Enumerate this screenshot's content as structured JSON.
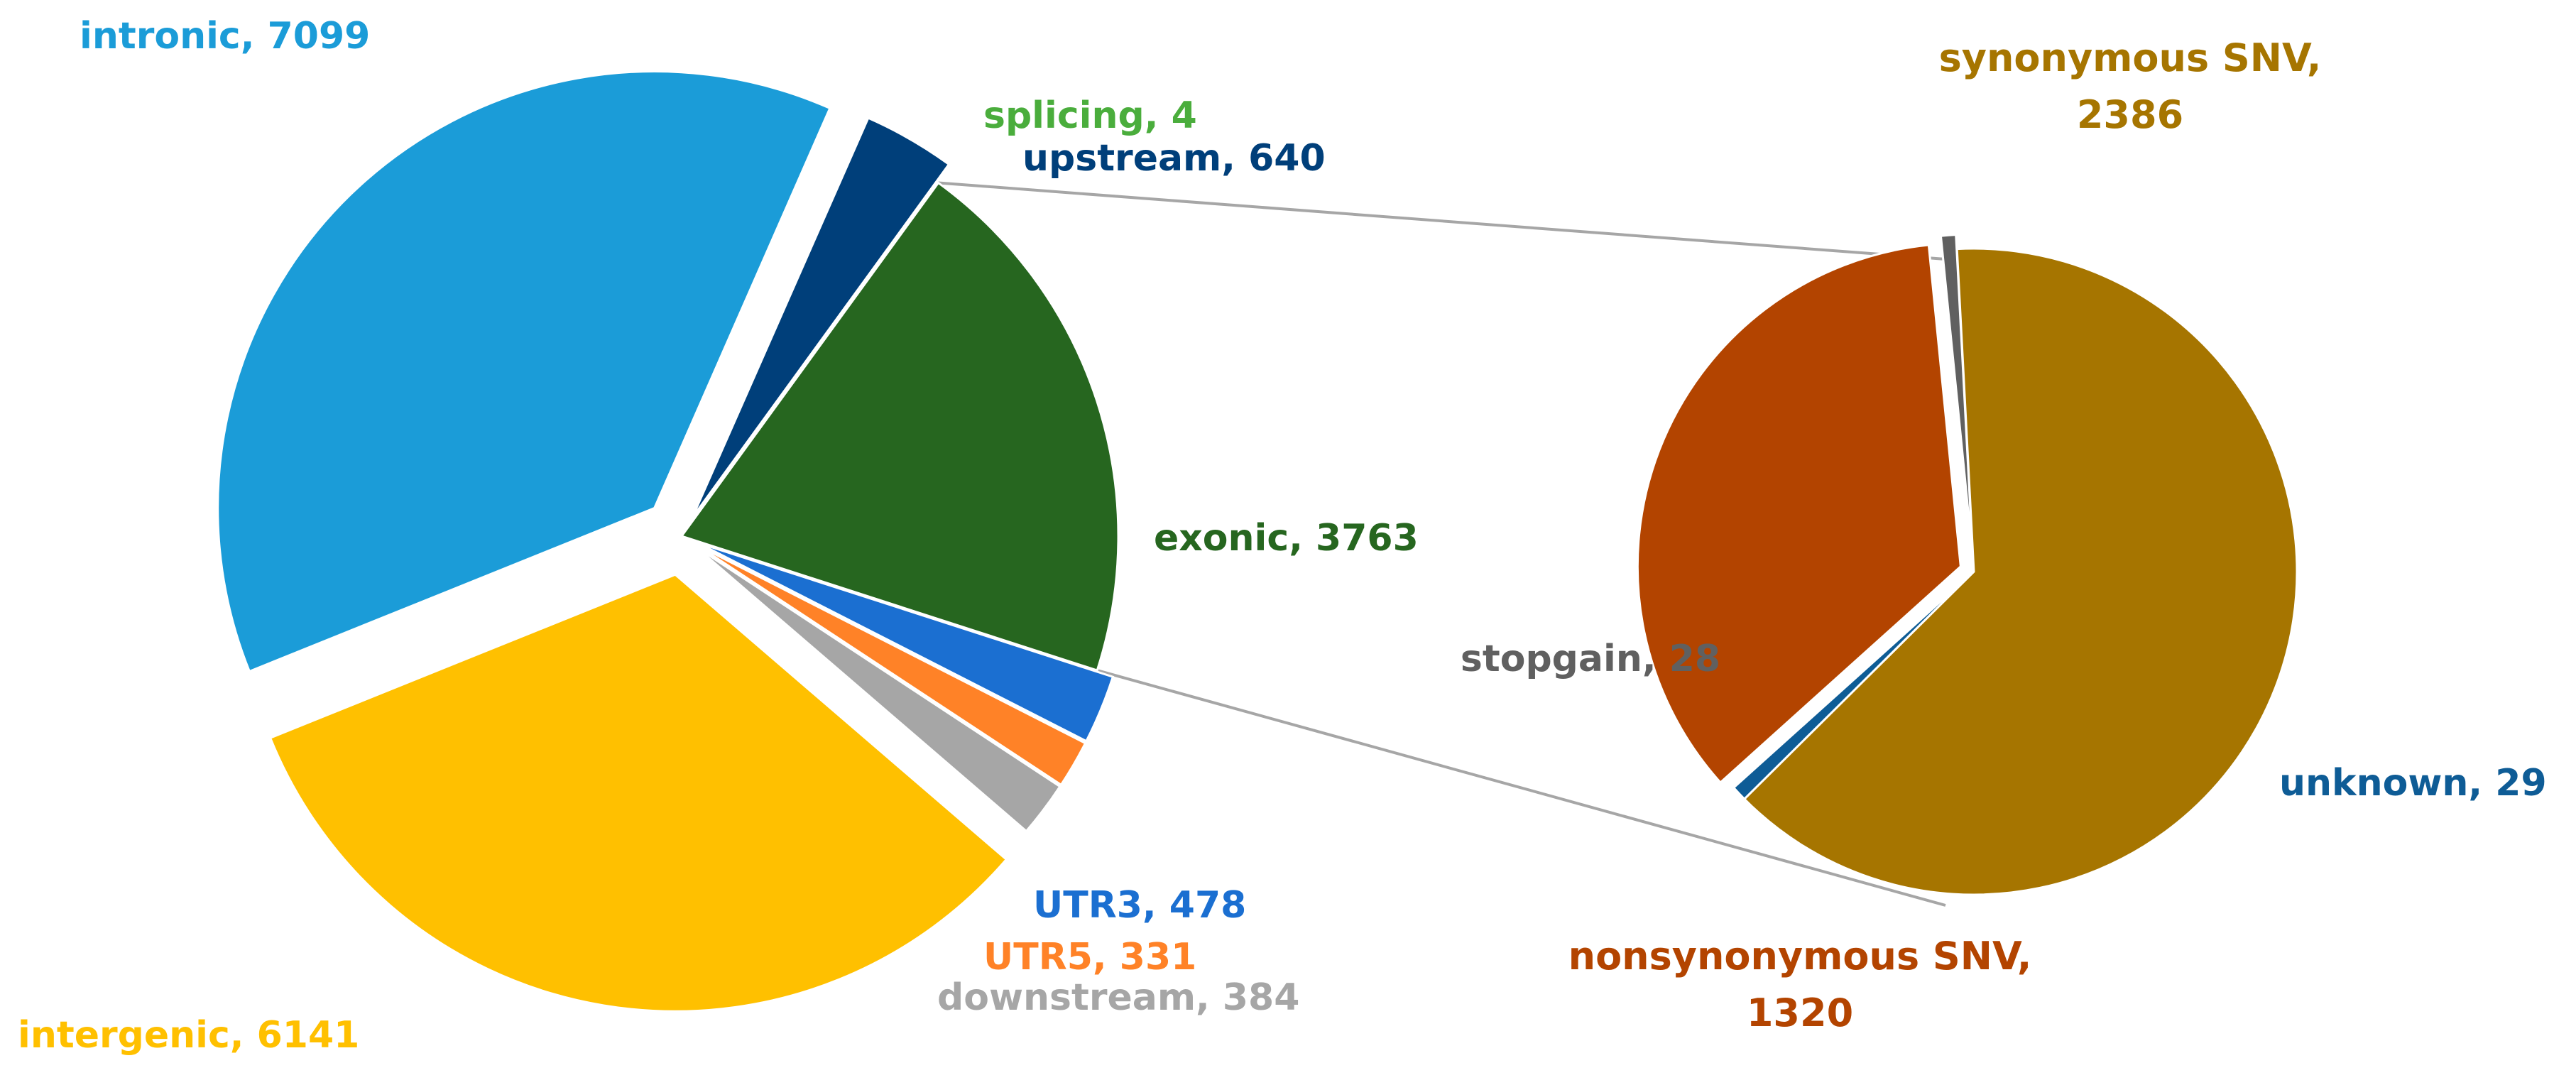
{
  "chart_data": [
    {
      "type": "pie",
      "title": "",
      "slices": [
        {
          "label": "exonic",
          "value": 3763,
          "color": "#26661f",
          "text": "exonic, 3763"
        },
        {
          "label": "UTR3",
          "value": 478,
          "color": "#1b6fd1",
          "text": "UTR3, 478"
        },
        {
          "label": "UTR5",
          "value": 331,
          "color": "#ff8227",
          "text": "UTR5, 331"
        },
        {
          "label": "downstream",
          "value": 384,
          "color": "#a6a6a6",
          "text": "downstream, 384"
        },
        {
          "label": "intergenic",
          "value": 6141,
          "color": "#ffc000",
          "text": "intergenic, 6141"
        },
        {
          "label": "intronic",
          "value": 7099,
          "color": "#1b9cd8",
          "text": "intronic, 7099"
        },
        {
          "label": "splicing",
          "value": 4,
          "color": "#4aad3c",
          "text": "splicing, 4"
        },
        {
          "label": "upstream",
          "value": 640,
          "color": "#003f7a",
          "text": "upstream, 640"
        }
      ]
    },
    {
      "type": "pie",
      "title": "",
      "slices": [
        {
          "label": "synonymous SNV",
          "value": 2386,
          "color": "#a67500",
          "text": [
            "synonymous SNV,",
            "2386"
          ]
        },
        {
          "label": "unknown",
          "value": 29,
          "color": "#0e5c96",
          "text": "unknown, 29"
        },
        {
          "label": "nonsynonymous SNV",
          "value": 1320,
          "color": "#b34400",
          "text": [
            "nonsynonymous SNV,",
            "1320"
          ]
        },
        {
          "label": "stopgain",
          "value": 28,
          "color": "#606060",
          "text": "stopgain,  28"
        }
      ]
    }
  ]
}
